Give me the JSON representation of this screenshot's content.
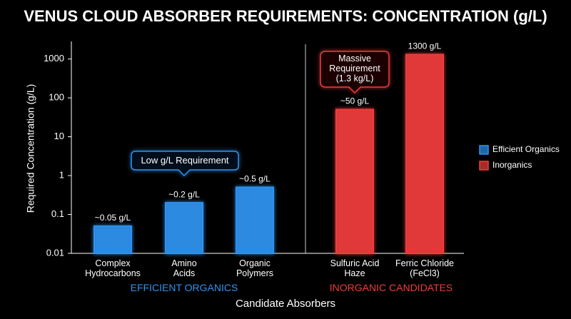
{
  "chart_data": {
    "type": "bar",
    "title": "VENUS CLOUD ABSORBER REQUIREMENTS: CONCENTRATION (g/L)",
    "y_label": "Required Concentration (g/L)",
    "x_label": "Candidate Absorbers",
    "categories": [
      "Complex\nHydrocarbons",
      "Amino\nAcids",
      "Organic\nPolymers",
      "Sulfuric Acid\nHaze",
      "Ferric Chloride\n(FeCl3)"
    ],
    "groups": [
      "EFFICIENT ORGANICS",
      "INORGANIC CANDIDATES"
    ],
    "series": [
      {
        "name": "Efficient Organics",
        "color": "#2f93f0",
        "values": [
          0.05,
          0.2,
          0.5,
          null,
          null
        ],
        "value_labels": [
          "~0.05 g/L",
          "~0.2 g/L",
          "~0.5 g/L",
          null,
          null
        ]
      },
      {
        "name": "Inorganics",
        "color": "#f03c3c",
        "values": [
          null,
          null,
          null,
          50,
          1300
        ],
        "value_labels": [
          null,
          null,
          null,
          "~50 g/L",
          "1300 g/L"
        ]
      }
    ],
    "ylim": [
      0.01,
      2500
    ],
    "yticks": [
      0.01,
      0.1,
      1,
      10,
      100,
      1000
    ],
    "log_scale": true,
    "legend": "right",
    "annotations": [
      "Low g/L Requirement",
      "Massive\nRequirement\n(1.3 kg/L)"
    ]
  }
}
